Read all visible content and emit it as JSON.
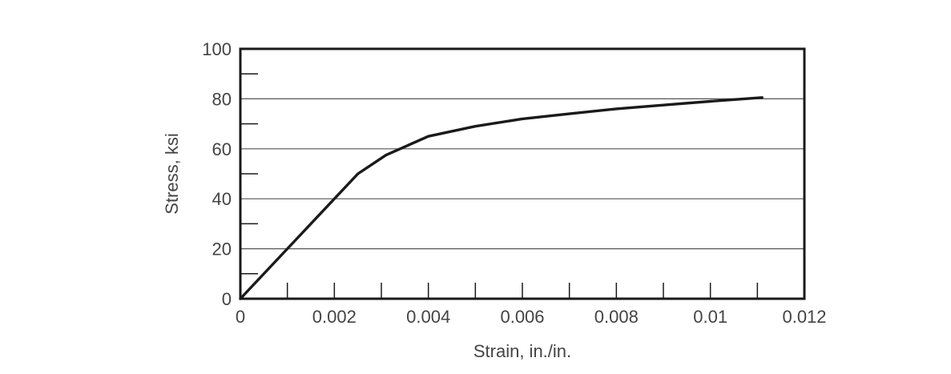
{
  "chart_data": {
    "type": "line",
    "title": "",
    "xlabel": "Strain, in./in.",
    "ylabel": "Stress, ksi",
    "xlim": [
      0,
      0.012
    ],
    "ylim": [
      0,
      100
    ],
    "x_ticks": [
      {
        "value": 0,
        "label": "0"
      },
      {
        "value": 0.002,
        "label": "0.002"
      },
      {
        "value": 0.004,
        "label": "0.004"
      },
      {
        "value": 0.006,
        "label": "0.006"
      },
      {
        "value": 0.008,
        "label": "0.008"
      },
      {
        "value": 0.01,
        "label": "0.01"
      },
      {
        "value": 0.012,
        "label": "0.012"
      }
    ],
    "x_minor_ticks": [
      0.001,
      0.002,
      0.003,
      0.004,
      0.005,
      0.006,
      0.007,
      0.008,
      0.009,
      0.01,
      0.011
    ],
    "y_ticks": [
      {
        "value": 0,
        "label": "0"
      },
      {
        "value": 20,
        "label": "20"
      },
      {
        "value": 40,
        "label": "40"
      },
      {
        "value": 60,
        "label": "60"
      },
      {
        "value": 80,
        "label": "80"
      },
      {
        "value": 100,
        "label": "100"
      }
    ],
    "y_minor_ticks": [
      10,
      30,
      50,
      70,
      90
    ],
    "grid": "horizontal",
    "series": [
      {
        "x": [
          0,
          0.0025,
          0.0031,
          0.0034,
          0.004,
          0.005,
          0.006,
          0.007,
          0.008,
          0.009,
          0.01,
          0.0111
        ],
        "y": [
          0,
          50,
          57.5,
          60,
          65,
          69,
          72,
          74,
          76,
          77.5,
          79,
          80.5
        ]
      }
    ],
    "line_color": "#1a1a1a",
    "axis_color": "#1a1a1a",
    "grid_color": "#555555",
    "text_color": "#444444"
  }
}
